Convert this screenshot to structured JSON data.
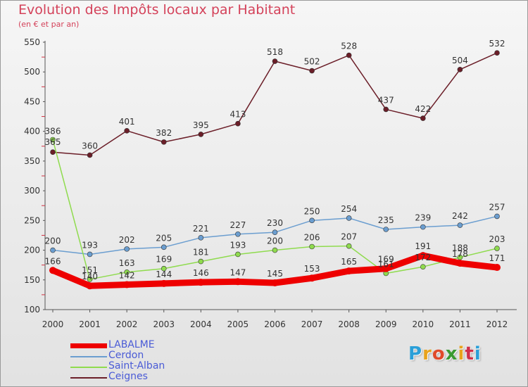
{
  "title": "Evolution des Impôts locaux par Habitant",
  "subtitle": "(en € et par an)",
  "logo": {
    "text": "Proxiti",
    "letters": [
      "P",
      "r",
      "o",
      "x",
      "i",
      "t",
      "i"
    ],
    "colors": [
      "#2a9fd8",
      "#e8a31c",
      "#e04a2a",
      "#3a9a30",
      "#e8a31c",
      "#d0304a",
      "#2a9fd8"
    ]
  },
  "chart_data": {
    "type": "line",
    "title": "Evolution des Impôts locaux par Habitant",
    "subtitle": "(en € et par an)",
    "xlabel": "",
    "ylabel": "",
    "ylim": [
      100,
      550
    ],
    "yticks": [
      100,
      150,
      200,
      250,
      300,
      350,
      400,
      450,
      500,
      550
    ],
    "grid": false,
    "legend_placement": "bottom-left",
    "categories": [
      "2000",
      "2001",
      "2002",
      "2003",
      "2004",
      "2005",
      "2006",
      "2007",
      "2008",
      "2009",
      "2010",
      "2011",
      "2012"
    ],
    "series": [
      {
        "name": "LABALME",
        "color": "#ee0000",
        "values": [
          166,
          140,
          142,
          144,
          146,
          147,
          145,
          153,
          165,
          169,
          191,
          178,
          171
        ]
      },
      {
        "name": "Cerdon",
        "color": "#6b9ed0",
        "values": [
          200,
          193,
          202,
          205,
          221,
          227,
          230,
          250,
          254,
          235,
          239,
          242,
          257
        ]
      },
      {
        "name": "Saint-Alban",
        "color": "#8fdb4e",
        "values": [
          386,
          151,
          163,
          169,
          181,
          193,
          200,
          206,
          207,
          161,
          172,
          188,
          203
        ]
      },
      {
        "name": "Ceignes",
        "color": "#6b1e28",
        "values": [
          365,
          360,
          401,
          382,
          395,
          413,
          518,
          502,
          528,
          437,
          422,
          504,
          532
        ]
      }
    ]
  }
}
